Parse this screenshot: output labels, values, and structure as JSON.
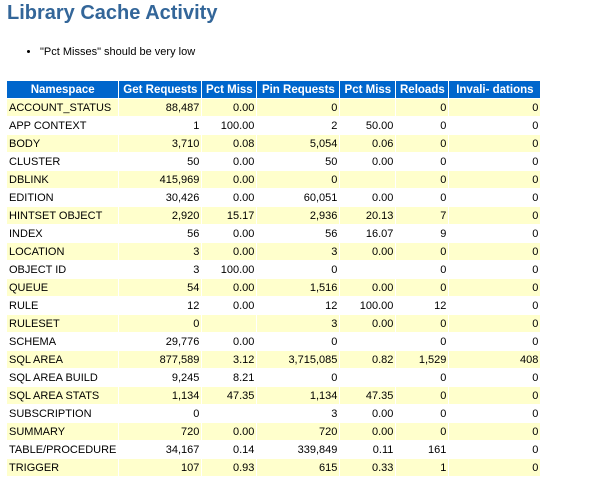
{
  "title": "Library Cache Activity",
  "notes": [
    "\"Pct Misses\" should be very low"
  ],
  "colors": {
    "title": "#336699",
    "header_bg": "#0066CC",
    "alt_row_bg": "#FFFFCC"
  },
  "columns": [
    "Namespace",
    "Get Requests",
    "Pct Miss",
    "Pin Requests",
    "Pct Miss",
    "Reloads",
    "Invali- dations"
  ],
  "rows": [
    [
      "ACCOUNT_STATUS",
      "88,487",
      "0.00",
      "0",
      "",
      "0",
      "0"
    ],
    [
      "APP CONTEXT",
      "1",
      "100.00",
      "2",
      "50.00",
      "0",
      "0"
    ],
    [
      "BODY",
      "3,710",
      "0.08",
      "5,054",
      "0.06",
      "0",
      "0"
    ],
    [
      "CLUSTER",
      "50",
      "0.00",
      "50",
      "0.00",
      "0",
      "0"
    ],
    [
      "DBLINK",
      "415,969",
      "0.00",
      "0",
      "",
      "0",
      "0"
    ],
    [
      "EDITION",
      "30,426",
      "0.00",
      "60,051",
      "0.00",
      "0",
      "0"
    ],
    [
      "HINTSET OBJECT",
      "2,920",
      "15.17",
      "2,936",
      "20.13",
      "7",
      "0"
    ],
    [
      "INDEX",
      "56",
      "0.00",
      "56",
      "16.07",
      "9",
      "0"
    ],
    [
      "LOCATION",
      "3",
      "0.00",
      "3",
      "0.00",
      "0",
      "0"
    ],
    [
      "OBJECT ID",
      "3",
      "100.00",
      "0",
      "",
      "0",
      "0"
    ],
    [
      "QUEUE",
      "54",
      "0.00",
      "1,516",
      "0.00",
      "0",
      "0"
    ],
    [
      "RULE",
      "12",
      "0.00",
      "12",
      "100.00",
      "12",
      "0"
    ],
    [
      "RULESET",
      "0",
      "",
      "3",
      "0.00",
      "0",
      "0"
    ],
    [
      "SCHEMA",
      "29,776",
      "0.00",
      "0",
      "",
      "0",
      "0"
    ],
    [
      "SQL AREA",
      "877,589",
      "3.12",
      "3,715,085",
      "0.82",
      "1,529",
      "408"
    ],
    [
      "SQL AREA BUILD",
      "9,245",
      "8.21",
      "0",
      "",
      "0",
      "0"
    ],
    [
      "SQL AREA STATS",
      "1,134",
      "47.35",
      "1,134",
      "47.35",
      "0",
      "0"
    ],
    [
      "SUBSCRIPTION",
      "0",
      "",
      "3",
      "0.00",
      "0",
      "0"
    ],
    [
      "SUMMARY",
      "720",
      "0.00",
      "720",
      "0.00",
      "0",
      "0"
    ],
    [
      "TABLE/PROCEDURE",
      "34,167",
      "0.14",
      "339,849",
      "0.11",
      "161",
      "0"
    ],
    [
      "TRIGGER",
      "107",
      "0.93",
      "615",
      "0.33",
      "1",
      "0"
    ]
  ]
}
